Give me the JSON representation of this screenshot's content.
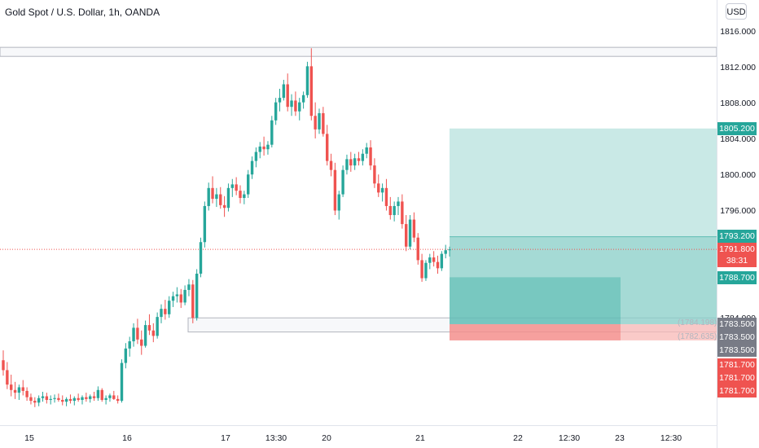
{
  "legend": {
    "title": "Gold Spot / U.S. Dollar, 1h, OANDA"
  },
  "currency_button": "USD",
  "colors": {
    "up": "#26a69a",
    "down": "#ef5350",
    "target": "#b2dfdb",
    "stop": "#f8b8b6",
    "grey_tag": "#787b86"
  },
  "price_axis": {
    "ticks": [
      "1816.000",
      "1812.000",
      "1808.000",
      "1804.000",
      "1800.000",
      "1796.000",
      "1784.000"
    ],
    "tags": [
      {
        "text": "1805.200",
        "kind": "up"
      },
      {
        "text": "1793.200",
        "kind": "up"
      },
      {
        "text": "1791.800",
        "kind": "down"
      },
      {
        "text": "38:31",
        "kind": "down"
      },
      {
        "text": "1788.700",
        "kind": "up"
      },
      {
        "text": "1783.500",
        "kind": "grey"
      },
      {
        "text": "1783.500",
        "kind": "grey"
      },
      {
        "text": "1783.500",
        "kind": "grey"
      },
      {
        "text": "1781.700",
        "kind": "down"
      },
      {
        "text": "1781.700",
        "kind": "down"
      },
      {
        "text": "1781.700",
        "kind": "down"
      }
    ]
  },
  "time_axis": {
    "labels": [
      "15",
      "16",
      "17",
      "13:30",
      "20",
      "21",
      "22",
      "12:30",
      "23",
      "12:30"
    ]
  },
  "zone_labels": {
    "upper": "(1784.198)",
    "lower": "(1782.635)"
  },
  "chart_data": {
    "type": "candlestick",
    "last_price": 1791.8,
    "countdown": "38:31",
    "price_range": [
      1774.0,
      1818.0
    ],
    "candles": [
      [
        1779.5,
        1780.6,
        1777.8,
        1778.4
      ],
      [
        1778.4,
        1779.3,
        1776.3,
        1776.8
      ],
      [
        1776.8,
        1777.9,
        1775.5,
        1776.2
      ],
      [
        1776.2,
        1777.1,
        1775.2,
        1775.9
      ],
      [
        1775.9,
        1776.8,
        1775.1,
        1776.5
      ],
      [
        1776.5,
        1777.3,
        1775.6,
        1776.1
      ],
      [
        1776.1,
        1776.5,
        1775.0,
        1775.4
      ],
      [
        1775.4,
        1775.8,
        1774.6,
        1775.0
      ],
      [
        1775.0,
        1775.4,
        1774.3,
        1774.8
      ],
      [
        1774.8,
        1775.6,
        1774.4,
        1775.3
      ],
      [
        1775.3,
        1776.0,
        1774.9,
        1775.5
      ],
      [
        1775.5,
        1775.9,
        1774.7,
        1775.1
      ],
      [
        1775.1,
        1775.6,
        1774.6,
        1775.2
      ],
      [
        1775.2,
        1775.7,
        1774.8,
        1775.3
      ],
      [
        1775.3,
        1775.8,
        1774.9,
        1775.1
      ],
      [
        1775.1,
        1775.6,
        1774.5,
        1774.9
      ],
      [
        1774.9,
        1775.4,
        1774.4,
        1775.2
      ],
      [
        1775.2,
        1775.7,
        1774.7,
        1775.0
      ],
      [
        1775.0,
        1775.5,
        1774.5,
        1775.3
      ],
      [
        1775.3,
        1775.8,
        1774.9,
        1775.1
      ],
      [
        1775.1,
        1775.6,
        1774.6,
        1775.4
      ],
      [
        1775.4,
        1775.9,
        1774.9,
        1775.2
      ],
      [
        1775.2,
        1775.7,
        1774.8,
        1775.5
      ],
      [
        1775.5,
        1776.0,
        1775.0,
        1775.3
      ],
      [
        1775.3,
        1776.6,
        1775.0,
        1776.2
      ],
      [
        1776.2,
        1776.4,
        1774.9,
        1775.1
      ],
      [
        1775.1,
        1775.6,
        1774.6,
        1775.3
      ],
      [
        1775.3,
        1775.8,
        1774.9,
        1775.6
      ],
      [
        1775.6,
        1776.1,
        1775.1,
        1775.2
      ],
      [
        1775.2,
        1775.6,
        1774.7,
        1775.0
      ],
      [
        1775.0,
        1779.6,
        1774.8,
        1779.2
      ],
      [
        1779.2,
        1781.4,
        1778.6,
        1780.8
      ],
      [
        1780.8,
        1782.1,
        1779.9,
        1781.6
      ],
      [
        1781.6,
        1783.6,
        1781.0,
        1783.1
      ],
      [
        1783.1,
        1784.1,
        1781.3,
        1781.8
      ],
      [
        1781.8,
        1782.8,
        1780.1,
        1781.1
      ],
      [
        1781.1,
        1783.9,
        1780.9,
        1783.4
      ],
      [
        1783.4,
        1784.6,
        1782.3,
        1782.8
      ],
      [
        1782.8,
        1783.6,
        1781.5,
        1782.2
      ],
      [
        1782.2,
        1784.8,
        1781.9,
        1784.3
      ],
      [
        1784.3,
        1785.7,
        1783.6,
        1785.2
      ],
      [
        1785.2,
        1786.2,
        1784.0,
        1784.6
      ],
      [
        1784.6,
        1786.6,
        1784.2,
        1786.1
      ],
      [
        1786.1,
        1787.1,
        1785.4,
        1786.6
      ],
      [
        1786.6,
        1787.6,
        1785.9,
        1786.8
      ],
      [
        1786.8,
        1787.4,
        1785.3,
        1785.9
      ],
      [
        1785.9,
        1787.8,
        1785.6,
        1787.3
      ],
      [
        1787.3,
        1788.5,
        1786.6,
        1787.9
      ],
      [
        1787.9,
        1788.4,
        1783.6,
        1784.2
      ],
      [
        1784.2,
        1789.6,
        1783.9,
        1789.1
      ],
      [
        1789.1,
        1793.1,
        1788.7,
        1792.6
      ],
      [
        1792.6,
        1797.1,
        1792.0,
        1796.6
      ],
      [
        1796.6,
        1799.2,
        1796.1,
        1798.6
      ],
      [
        1798.6,
        1799.9,
        1796.9,
        1797.4
      ],
      [
        1797.4,
        1798.6,
        1796.5,
        1797.9
      ],
      [
        1797.9,
        1798.7,
        1796.3,
        1796.7
      ],
      [
        1796.7,
        1797.7,
        1795.4,
        1796.4
      ],
      [
        1796.4,
        1799.1,
        1796.0,
        1798.6
      ],
      [
        1798.6,
        1799.6,
        1797.6,
        1799.0
      ],
      [
        1799.0,
        1799.8,
        1797.8,
        1798.3
      ],
      [
        1798.3,
        1798.9,
        1796.9,
        1797.5
      ],
      [
        1797.5,
        1798.3,
        1796.8,
        1797.9
      ],
      [
        1797.9,
        1800.6,
        1797.5,
        1800.1
      ],
      [
        1800.1,
        1802.1,
        1799.6,
        1801.6
      ],
      [
        1801.6,
        1803.1,
        1800.9,
        1802.6
      ],
      [
        1802.6,
        1803.7,
        1801.9,
        1803.2
      ],
      [
        1803.2,
        1804.3,
        1802.2,
        1802.9
      ],
      [
        1802.9,
        1803.8,
        1802.3,
        1803.4
      ],
      [
        1803.4,
        1806.6,
        1803.1,
        1806.1
      ],
      [
        1806.1,
        1808.6,
        1805.6,
        1808.1
      ],
      [
        1808.1,
        1809.6,
        1807.1,
        1808.6
      ],
      [
        1808.6,
        1810.6,
        1808.3,
        1810.1
      ],
      [
        1810.1,
        1811.3,
        1807.1,
        1807.6
      ],
      [
        1807.6,
        1809.0,
        1806.6,
        1808.3
      ],
      [
        1808.3,
        1809.3,
        1806.6,
        1807.1
      ],
      [
        1807.1,
        1808.6,
        1806.1,
        1808.1
      ],
      [
        1808.1,
        1809.3,
        1807.4,
        1808.9
      ],
      [
        1808.9,
        1812.6,
        1808.6,
        1812.1
      ],
      [
        1812.1,
        1814.1,
        1806.1,
        1806.6
      ],
      [
        1806.6,
        1808.1,
        1804.1,
        1805.1
      ],
      [
        1805.1,
        1807.4,
        1804.6,
        1806.9
      ],
      [
        1806.9,
        1807.6,
        1804.3,
        1804.6
      ],
      [
        1804.6,
        1805.6,
        1801.1,
        1801.6
      ],
      [
        1801.6,
        1802.4,
        1799.9,
        1800.6
      ],
      [
        1800.6,
        1801.4,
        1795.6,
        1796.1
      ],
      [
        1796.1,
        1798.3,
        1795.1,
        1797.9
      ],
      [
        1797.9,
        1801.1,
        1797.6,
        1800.6
      ],
      [
        1800.6,
        1802.3,
        1800.1,
        1801.8
      ],
      [
        1801.8,
        1802.6,
        1800.4,
        1801.1
      ],
      [
        1801.1,
        1802.4,
        1800.6,
        1801.9
      ],
      [
        1801.9,
        1802.6,
        1801.1,
        1801.6
      ],
      [
        1801.6,
        1802.9,
        1801.1,
        1802.4
      ],
      [
        1802.4,
        1803.6,
        1801.9,
        1803.1
      ],
      [
        1803.1,
        1803.9,
        1800.6,
        1801.1
      ],
      [
        1801.1,
        1801.9,
        1798.6,
        1799.1
      ],
      [
        1799.1,
        1800.1,
        1797.6,
        1798.1
      ],
      [
        1798.1,
        1799.1,
        1797.1,
        1798.6
      ],
      [
        1798.6,
        1799.6,
        1796.1,
        1796.6
      ],
      [
        1796.6,
        1797.6,
        1795.1,
        1795.6
      ],
      [
        1795.6,
        1797.1,
        1794.9,
        1796.6
      ],
      [
        1796.6,
        1797.6,
        1795.6,
        1797.1
      ],
      [
        1797.1,
        1797.9,
        1794.1,
        1794.6
      ],
      [
        1794.6,
        1795.6,
        1791.6,
        1792.1
      ],
      [
        1792.1,
        1795.6,
        1791.8,
        1795.1
      ],
      [
        1795.1,
        1795.9,
        1792.6,
        1793.1
      ],
      [
        1793.1,
        1793.6,
        1790.1,
        1790.6
      ],
      [
        1790.6,
        1791.3,
        1788.2,
        1788.6
      ],
      [
        1788.6,
        1790.6,
        1788.3,
        1790.3
      ],
      [
        1790.3,
        1791.3,
        1789.6,
        1790.9
      ],
      [
        1790.9,
        1791.6,
        1789.9,
        1790.4
      ],
      [
        1790.4,
        1791.1,
        1789.1,
        1789.7
      ],
      [
        1789.7,
        1791.6,
        1789.4,
        1791.3
      ],
      [
        1791.3,
        1792.3,
        1790.8,
        1791.7
      ],
      [
        1791.7,
        1792.1,
        1791.0,
        1791.8
      ]
    ],
    "target_price": 1805.2,
    "entry_price": 1793.2,
    "second_target": 1788.7,
    "stop_price": 1783.5,
    "stop_prices_lower": [
      1781.7
    ],
    "upper_band": [
      1813.2,
      1814.2
    ],
    "lower_band": [
      1782.635,
      1784.198
    ]
  }
}
